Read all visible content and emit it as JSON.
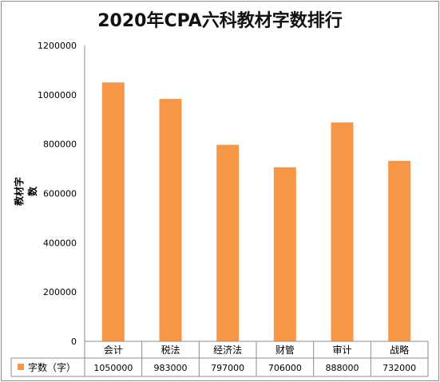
{
  "chart_data": {
    "type": "bar",
    "title": "2020年CPA六科教材字数排行",
    "ylabel": "教材字数",
    "xlabel": "",
    "ylim": [
      0,
      1200000
    ],
    "yticks": [
      "0",
      "200000",
      "400000",
      "600000",
      "800000",
      "1000000",
      "1200000"
    ],
    "categories": [
      "会计",
      "税法",
      "经济法",
      "财管",
      "审计",
      "战略"
    ],
    "series": [
      {
        "name": "字数（字）",
        "values": [
          1050000,
          983000,
          797000,
          706000,
          888000,
          732000
        ]
      }
    ],
    "value_labels": [
      "1050000",
      "983000",
      "797000",
      "706000",
      "888000",
      "732000"
    ],
    "grid": false,
    "legend": "data-table-left",
    "colors": {
      "bar": "#F79646",
      "axis": "#8c8c8c"
    }
  }
}
